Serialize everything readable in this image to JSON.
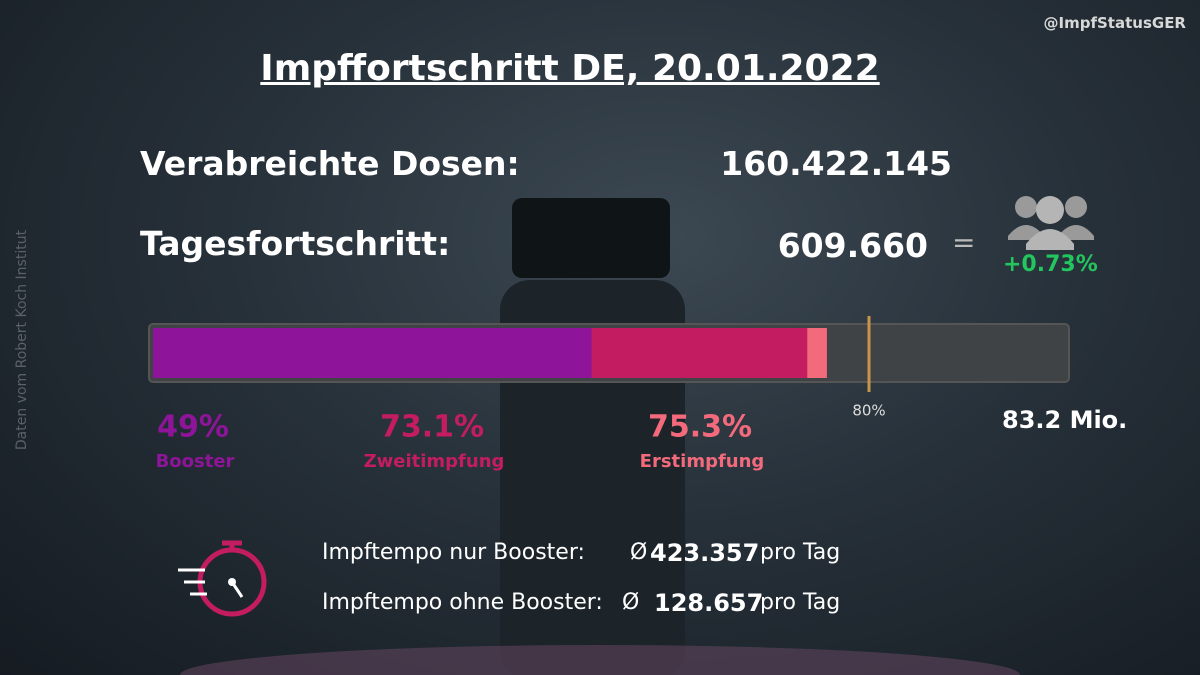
{
  "header": {
    "title": "Impffortschritt DE, 20.01.2022",
    "handle": "@ImpfStatusGER"
  },
  "source": "Daten vom Robert Koch Institut",
  "stats": {
    "doses_label": "Verabreichte Dosen:",
    "doses_value": "160.422.145",
    "daily_label": "Tagesfortschritt:",
    "daily_value": "609.660",
    "equals": "=",
    "daily_share": "+0.73%"
  },
  "progress": {
    "xlim": [
      0,
      100
    ],
    "segments": [
      {
        "name": "Booster",
        "value": 49,
        "label": "49%",
        "color": "#8e1499"
      },
      {
        "name": "Zweitimpfung",
        "value": 73.1,
        "label": "73.1%",
        "color": "#c41c60"
      },
      {
        "name": "Erstimpfung",
        "value": 75.3,
        "label": "75.3%",
        "color": "#f26a7c"
      }
    ],
    "marker": {
      "value": 80,
      "label": "80%"
    },
    "population": "83.2 Mio."
  },
  "pace": [
    {
      "label": "Impftempo nur Booster:",
      "symbol": "Ø",
      "value": "423.357",
      "unit": "pro Tag"
    },
    {
      "label": "Impftempo ohne Booster:",
      "symbol": "Ø",
      "value": "128.657",
      "unit": "pro Tag"
    }
  ]
}
